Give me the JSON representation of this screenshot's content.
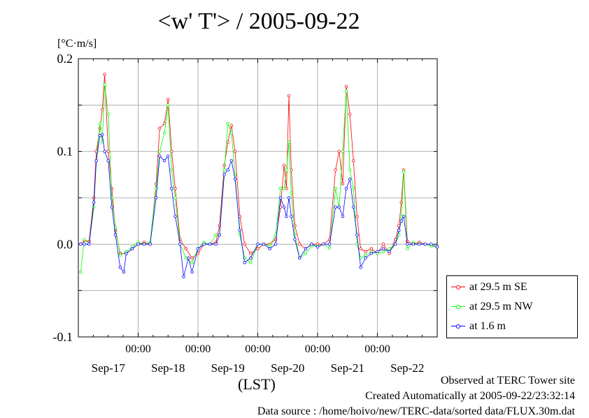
{
  "chart_data": {
    "type": "line",
    "title": "<w' T'> / 2005-09-22",
    "ylabel": "[°C·m/s]",
    "xlabel": "(LST)",
    "ylim": [
      -0.1,
      0.2
    ],
    "yticks": [
      -0.1,
      0.0,
      0.1,
      0.2
    ],
    "ytick_labels": [
      "-0.1",
      "0.0",
      "0.1",
      "0.2"
    ],
    "xlim": [
      0,
      6
    ],
    "xticks": [
      1,
      2,
      3,
      4,
      5
    ],
    "xtick_labels": [
      "00:00",
      "00:00",
      "00:00",
      "00:00",
      "00:00"
    ],
    "x_date_labels": [
      {
        "x": 0.5,
        "label": "Sep-17"
      },
      {
        "x": 1.5,
        "label": "Sep-18"
      },
      {
        "x": 2.5,
        "label": "Sep-19"
      },
      {
        "x": 3.5,
        "label": "Sep-20"
      },
      {
        "x": 4.5,
        "label": "Sep-21"
      },
      {
        "x": 5.5,
        "label": "Sep-22"
      }
    ],
    "grid": true,
    "legend_position": "lower-right, outside plot",
    "series": [
      {
        "name": "at 29.5 m SE",
        "color": "#ff0000",
        "points": [
          [
            0.04,
            0.0
          ],
          [
            0.1,
            0.004
          ],
          [
            0.18,
            0.003
          ],
          [
            0.26,
            0.05
          ],
          [
            0.3,
            0.1
          ],
          [
            0.36,
            0.125
          ],
          [
            0.4,
            0.145
          ],
          [
            0.44,
            0.183
          ],
          [
            0.5,
            0.1
          ],
          [
            0.56,
            0.06
          ],
          [
            0.62,
            0.015
          ],
          [
            0.7,
            -0.01
          ],
          [
            0.8,
            -0.01
          ],
          [
            0.9,
            -0.005
          ],
          [
            1.0,
            0.0
          ],
          [
            1.1,
            0.002
          ],
          [
            1.2,
            0.0
          ],
          [
            1.3,
            0.065
          ],
          [
            1.36,
            0.125
          ],
          [
            1.44,
            0.13
          ],
          [
            1.5,
            0.156
          ],
          [
            1.56,
            0.1
          ],
          [
            1.62,
            0.06
          ],
          [
            1.7,
            0.005
          ],
          [
            1.8,
            -0.005
          ],
          [
            1.9,
            -0.015
          ],
          [
            2.0,
            -0.01
          ],
          [
            2.1,
            0.0
          ],
          [
            2.2,
            0.0
          ],
          [
            2.3,
            0.002
          ],
          [
            2.36,
            0.02
          ],
          [
            2.44,
            0.085
          ],
          [
            2.5,
            0.11
          ],
          [
            2.56,
            0.128
          ],
          [
            2.62,
            0.1
          ],
          [
            2.7,
            0.03
          ],
          [
            2.78,
            0.0
          ],
          [
            2.88,
            -0.01
          ],
          [
            3.0,
            -0.005
          ],
          [
            3.1,
            0.0
          ],
          [
            3.2,
            0.0
          ],
          [
            3.3,
            0.005
          ],
          [
            3.38,
            0.04
          ],
          [
            3.44,
            0.085
          ],
          [
            3.48,
            0.06
          ],
          [
            3.52,
            0.16
          ],
          [
            3.56,
            0.08
          ],
          [
            3.62,
            0.02
          ],
          [
            3.7,
            0.0
          ],
          [
            3.8,
            -0.005
          ],
          [
            3.9,
            0.0
          ],
          [
            4.0,
            0.0
          ],
          [
            4.1,
            0.0
          ],
          [
            4.2,
            0.005
          ],
          [
            4.3,
            0.08
          ],
          [
            4.36,
            0.1
          ],
          [
            4.42,
            0.065
          ],
          [
            4.48,
            0.17
          ],
          [
            4.54,
            0.14
          ],
          [
            4.6,
            0.09
          ],
          [
            4.66,
            0.03
          ],
          [
            4.72,
            -0.005
          ],
          [
            4.8,
            -0.008
          ],
          [
            4.9,
            -0.005
          ],
          [
            5.0,
            -0.01
          ],
          [
            5.1,
            0.0
          ],
          [
            5.2,
            -0.01
          ],
          [
            5.3,
            0.005
          ],
          [
            5.36,
            0.02
          ],
          [
            5.4,
            0.045
          ],
          [
            5.44,
            0.08
          ],
          [
            5.5,
            0.003
          ],
          [
            5.6,
            0.0
          ],
          [
            5.7,
            0.002
          ],
          [
            5.8,
            0.0
          ],
          [
            5.9,
            -0.002
          ],
          [
            6.0,
            -0.003
          ]
        ]
      },
      {
        "name": "at 29.5 m NW",
        "color": "#00ff00",
        "points": [
          [
            0.04,
            -0.03
          ],
          [
            0.1,
            0.005
          ],
          [
            0.18,
            0.0
          ],
          [
            0.26,
            0.04
          ],
          [
            0.3,
            0.09
          ],
          [
            0.36,
            0.13
          ],
          [
            0.4,
            0.11
          ],
          [
            0.44,
            0.172
          ],
          [
            0.5,
            0.14
          ],
          [
            0.56,
            0.05
          ],
          [
            0.62,
            0.018
          ],
          [
            0.7,
            -0.012
          ],
          [
            0.8,
            -0.008
          ],
          [
            0.9,
            -0.003
          ],
          [
            1.0,
            0.002
          ],
          [
            1.1,
            0.0
          ],
          [
            1.2,
            0.002
          ],
          [
            1.3,
            0.06
          ],
          [
            1.36,
            0.1
          ],
          [
            1.44,
            0.12
          ],
          [
            1.5,
            0.15
          ],
          [
            1.56,
            0.08
          ],
          [
            1.62,
            0.05
          ],
          [
            1.7,
            0.0
          ],
          [
            1.8,
            -0.015
          ],
          [
            1.9,
            -0.02
          ],
          [
            2.0,
            -0.005
          ],
          [
            2.1,
            0.002
          ],
          [
            2.2,
            0.0
          ],
          [
            2.3,
            0.01
          ],
          [
            2.36,
            0.01
          ],
          [
            2.44,
            0.08
          ],
          [
            2.5,
            0.13
          ],
          [
            2.56,
            0.12
          ],
          [
            2.62,
            0.075
          ],
          [
            2.7,
            0.01
          ],
          [
            2.78,
            -0.015
          ],
          [
            2.88,
            -0.02
          ],
          [
            3.0,
            0.0
          ],
          [
            3.1,
            0.0
          ],
          [
            3.2,
            -0.002
          ],
          [
            3.3,
            0.01
          ],
          [
            3.38,
            0.06
          ],
          [
            3.44,
            0.06
          ],
          [
            3.48,
            0.08
          ],
          [
            3.52,
            0.11
          ],
          [
            3.56,
            0.055
          ],
          [
            3.62,
            0.01
          ],
          [
            3.7,
            -0.015
          ],
          [
            3.8,
            -0.01
          ],
          [
            3.9,
            -0.002
          ],
          [
            4.0,
            -0.002
          ],
          [
            4.1,
            0.0
          ],
          [
            4.2,
            -0.004
          ],
          [
            4.3,
            0.06
          ],
          [
            4.36,
            0.04
          ],
          [
            4.42,
            0.1
          ],
          [
            4.48,
            0.165
          ],
          [
            4.54,
            0.08
          ],
          [
            4.6,
            0.06
          ],
          [
            4.66,
            0.0
          ],
          [
            4.72,
            -0.015
          ],
          [
            4.8,
            -0.012
          ],
          [
            4.9,
            -0.008
          ],
          [
            5.0,
            -0.01
          ],
          [
            5.1,
            -0.008
          ],
          [
            5.2,
            -0.005
          ],
          [
            5.3,
            0.0
          ],
          [
            5.36,
            0.01
          ],
          [
            5.4,
            0.03
          ],
          [
            5.44,
            0.078
          ],
          [
            5.5,
            -0.005
          ],
          [
            5.6,
            0.002
          ],
          [
            5.7,
            0.0
          ],
          [
            5.8,
            0.0
          ],
          [
            5.9,
            -0.002
          ],
          [
            6.0,
            -0.003
          ]
        ]
      },
      {
        "name": "at 1.6 m",
        "color": "#0000ff",
        "points": [
          [
            0.04,
            0.0
          ],
          [
            0.1,
            0.0
          ],
          [
            0.18,
            0.0
          ],
          [
            0.26,
            0.045
          ],
          [
            0.3,
            0.09
          ],
          [
            0.36,
            0.117
          ],
          [
            0.4,
            0.118
          ],
          [
            0.44,
            0.1
          ],
          [
            0.5,
            0.09
          ],
          [
            0.56,
            0.04
          ],
          [
            0.62,
            0.01
          ],
          [
            0.7,
            -0.025
          ],
          [
            0.76,
            -0.03
          ],
          [
            0.8,
            -0.01
          ],
          [
            0.9,
            -0.005
          ],
          [
            1.0,
            0.0
          ],
          [
            1.1,
            0.0
          ],
          [
            1.2,
            0.0
          ],
          [
            1.3,
            0.05
          ],
          [
            1.36,
            0.095
          ],
          [
            1.44,
            0.09
          ],
          [
            1.5,
            0.095
          ],
          [
            1.56,
            0.06
          ],
          [
            1.62,
            0.03
          ],
          [
            1.7,
            0.0
          ],
          [
            1.76,
            -0.035
          ],
          [
            1.84,
            -0.015
          ],
          [
            1.9,
            -0.03
          ],
          [
            2.0,
            -0.005
          ],
          [
            2.1,
            0.0
          ],
          [
            2.2,
            0.0
          ],
          [
            2.3,
            0.0
          ],
          [
            2.36,
            0.01
          ],
          [
            2.44,
            0.075
          ],
          [
            2.5,
            0.08
          ],
          [
            2.56,
            0.09
          ],
          [
            2.62,
            0.07
          ],
          [
            2.7,
            0.015
          ],
          [
            2.78,
            -0.02
          ],
          [
            2.88,
            -0.015
          ],
          [
            3.0,
            0.0
          ],
          [
            3.1,
            0.0
          ],
          [
            3.2,
            -0.005
          ],
          [
            3.3,
            0.0
          ],
          [
            3.38,
            0.05
          ],
          [
            3.44,
            0.04
          ],
          [
            3.48,
            0.03
          ],
          [
            3.52,
            0.05
          ],
          [
            3.56,
            0.03
          ],
          [
            3.62,
            0.005
          ],
          [
            3.7,
            -0.015
          ],
          [
            3.8,
            -0.005
          ],
          [
            3.9,
            0.0
          ],
          [
            4.0,
            -0.003
          ],
          [
            4.1,
            0.0
          ],
          [
            4.2,
            0.0
          ],
          [
            4.3,
            0.04
          ],
          [
            4.36,
            0.04
          ],
          [
            4.42,
            0.03
          ],
          [
            4.48,
            0.06
          ],
          [
            4.54,
            0.07
          ],
          [
            4.6,
            0.04
          ],
          [
            4.66,
            0.01
          ],
          [
            4.72,
            -0.025
          ],
          [
            4.8,
            -0.015
          ],
          [
            4.9,
            -0.01
          ],
          [
            5.0,
            -0.008
          ],
          [
            5.1,
            -0.005
          ],
          [
            5.2,
            -0.008
          ],
          [
            5.3,
            0.0
          ],
          [
            5.36,
            0.015
          ],
          [
            5.4,
            0.025
          ],
          [
            5.44,
            0.03
          ],
          [
            5.5,
            0.0
          ],
          [
            5.6,
            0.0
          ],
          [
            5.7,
            0.0
          ],
          [
            5.8,
            0.0
          ],
          [
            5.9,
            0.0
          ],
          [
            6.0,
            -0.003
          ]
        ]
      }
    ]
  },
  "footer": {
    "observed": "Observed at TERC Tower site",
    "created": "Created Automatically at 2005-09-22/23:32:14",
    "source": "Data source : /home/hoivo/new/TERC-data/sorted  data/FLUX.30m.dat"
  }
}
